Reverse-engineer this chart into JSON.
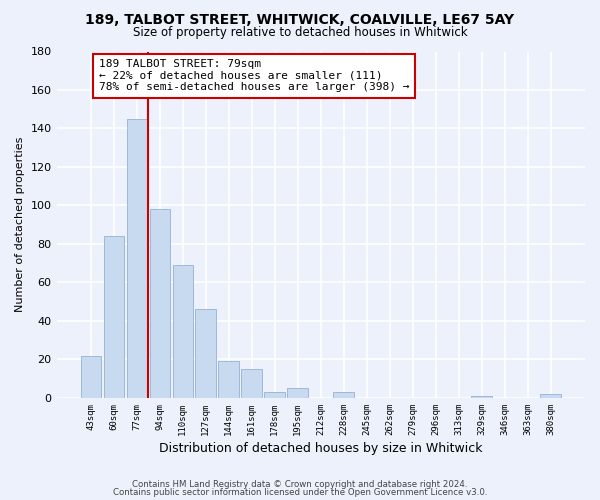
{
  "title1": "189, TALBOT STREET, WHITWICK, COALVILLE, LE67 5AY",
  "title2": "Size of property relative to detached houses in Whitwick",
  "xlabel": "Distribution of detached houses by size in Whitwick",
  "ylabel": "Number of detached properties",
  "categories": [
    "43sqm",
    "60sqm",
    "77sqm",
    "94sqm",
    "110sqm",
    "127sqm",
    "144sqm",
    "161sqm",
    "178sqm",
    "195sqm",
    "212sqm",
    "228sqm",
    "245sqm",
    "262sqm",
    "279sqm",
    "296sqm",
    "313sqm",
    "329sqm",
    "346sqm",
    "363sqm",
    "380sqm"
  ],
  "values": [
    22,
    84,
    145,
    98,
    69,
    46,
    19,
    15,
    3,
    5,
    0,
    3,
    0,
    0,
    0,
    0,
    0,
    1,
    0,
    0,
    2
  ],
  "bar_color": "#c8daf0",
  "bar_edge_color": "#a0b8d8",
  "annotation_text": "189 TALBOT STREET: 79sqm\n← 22% of detached houses are smaller (111)\n78% of semi-detached houses are larger (398) →",
  "annotation_box_color": "white",
  "annotation_box_edge_color": "#cc0000",
  "redline_color": "#cc0000",
  "ylim": [
    0,
    180
  ],
  "yticks": [
    0,
    20,
    40,
    60,
    80,
    100,
    120,
    140,
    160,
    180
  ],
  "footer1": "Contains HM Land Registry data © Crown copyright and database right 2024.",
  "footer2": "Contains public sector information licensed under the Open Government Licence v3.0.",
  "bg_color": "#edf1fb",
  "grid_color": "white"
}
